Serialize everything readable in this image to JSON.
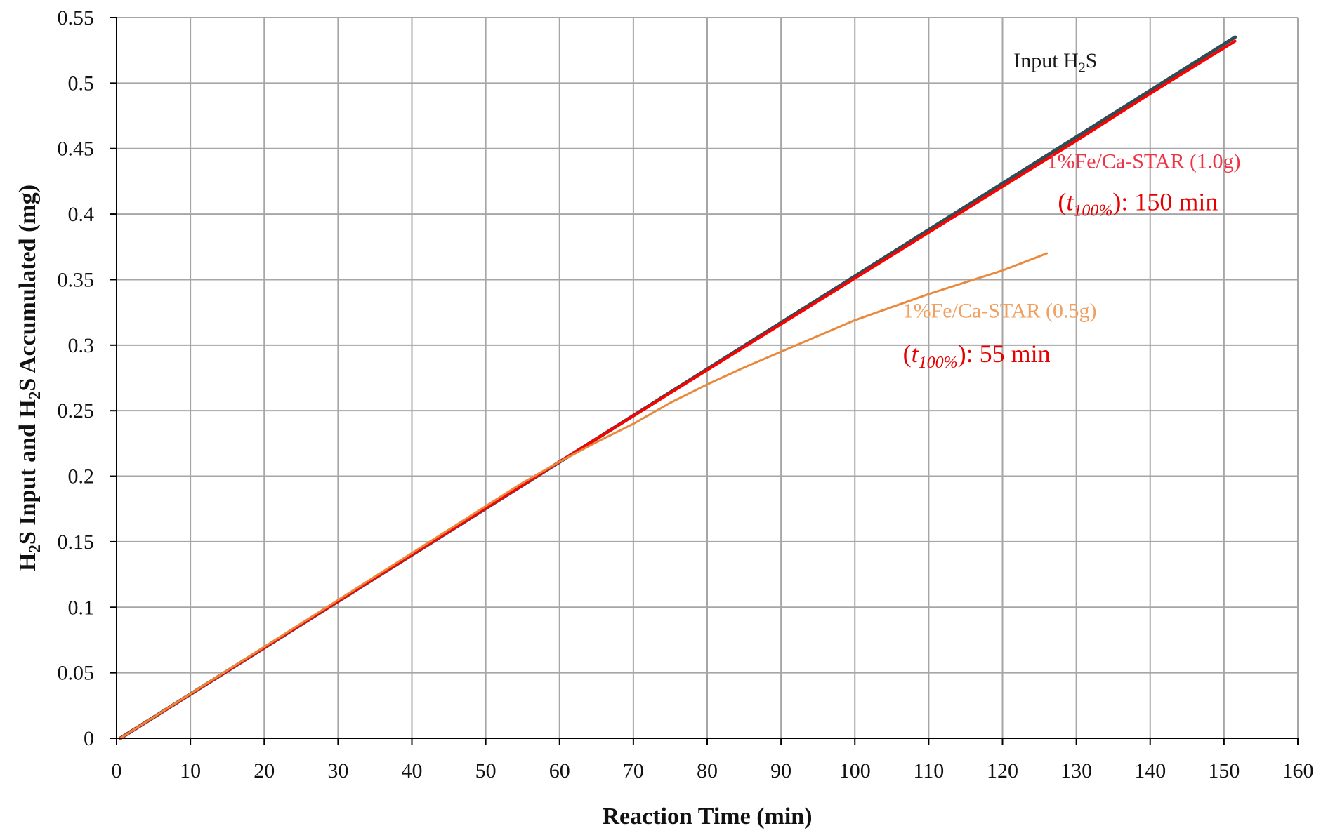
{
  "chart_data": {
    "type": "line",
    "title": "",
    "xlabel": "Reaction Time (min)",
    "ylabel": {
      "parts": [
        {
          "text": "H",
          "sub": false
        },
        {
          "text": "2",
          "sub": true
        },
        {
          "text": "S Input and ",
          "sub": false
        },
        {
          "text": "H",
          "sub": false
        },
        {
          "text": "2",
          "sub": true
        },
        {
          "text": "S Accumulated (mg)",
          "sub": false
        }
      ]
    },
    "xlim": [
      0,
      160
    ],
    "ylim": [
      0,
      0.55
    ],
    "x_ticks": [
      0,
      10,
      20,
      30,
      40,
      50,
      60,
      70,
      80,
      90,
      100,
      110,
      120,
      130,
      140,
      150,
      160
    ],
    "y_ticks": [
      0,
      0.05,
      0.1,
      0.15,
      0.2,
      0.25,
      0.3,
      0.35,
      0.4,
      0.45,
      0.5,
      0.55
    ],
    "x_tick_labels": [
      "0",
      "10",
      "20",
      "30",
      "40",
      "50",
      "60",
      "70",
      "80",
      "90",
      "100",
      "110",
      "120",
      "130",
      "140",
      "150",
      "160"
    ],
    "y_tick_labels": [
      "0",
      "0.05",
      "0.1",
      "0.15",
      "0.2",
      "0.25",
      "0.3",
      "0.35",
      "0.4",
      "0.45",
      "0.5",
      "0.55"
    ],
    "grid": true,
    "colors": {
      "grid": "#a6a6a6",
      "axis": "#000000"
    },
    "series": [
      {
        "color": "#2e4d55",
        "stroke_px": 5,
        "points": [
          [
            0.5,
            0.0
          ],
          [
            151.5,
            0.535
          ]
        ]
      },
      {
        "color": "#ff0000",
        "stroke_px": 4,
        "points": [
          [
            0.5,
            0.0
          ],
          [
            60,
            0.211
          ],
          [
            70,
            0.246
          ],
          [
            80,
            0.281
          ],
          [
            90,
            0.316
          ],
          [
            100,
            0.351
          ],
          [
            110,
            0.386
          ],
          [
            120,
            0.421
          ],
          [
            130,
            0.456
          ],
          [
            140,
            0.492
          ],
          [
            151.5,
            0.532
          ]
        ]
      },
      {
        "color": "#e8893e",
        "stroke_px": 3,
        "points": [
          [
            0.5,
            0.0
          ],
          [
            55,
            0.195
          ],
          [
            60,
            0.211
          ],
          [
            65,
            0.226
          ],
          [
            70,
            0.24
          ],
          [
            75,
            0.256
          ],
          [
            80,
            0.27
          ],
          [
            85,
            0.283
          ],
          [
            90,
            0.295
          ],
          [
            95,
            0.307
          ],
          [
            100,
            0.319
          ],
          [
            105,
            0.329
          ],
          [
            110,
            0.339
          ],
          [
            115,
            0.348
          ],
          [
            120,
            0.357
          ],
          [
            126,
            0.37
          ]
        ]
      }
    ],
    "annotations": [
      {
        "x": 121.5,
        "y": 0.512,
        "color": "#1a1a1a",
        "size": 30,
        "anchor": "start",
        "parts": [
          {
            "text": "Input H",
            "italic": false,
            "sub": false
          },
          {
            "text": "2",
            "italic": false,
            "sub": true
          },
          {
            "text": "S",
            "italic": false,
            "sub": false
          }
        ]
      },
      {
        "x": 126,
        "y": 0.435,
        "color": "#ee3344",
        "size": 30,
        "anchor": "start",
        "parts": [
          {
            "text": "1%Fe/Ca-STAR (1.0g)",
            "italic": false,
            "sub": false
          }
        ]
      },
      {
        "x": 127.5,
        "y": 0.403,
        "color": "#e60000",
        "size": 36,
        "anchor": "start",
        "parts": [
          {
            "text": "(",
            "italic": false,
            "sub": false
          },
          {
            "text": "t",
            "italic": true,
            "sub": false
          },
          {
            "text": "100%",
            "italic": true,
            "sub": true
          },
          {
            "text": "): 150 min",
            "italic": false,
            "sub": false
          }
        ]
      },
      {
        "x": 106.5,
        "y": 0.321,
        "color": "#f0a060",
        "size": 30,
        "anchor": "start",
        "parts": [
          {
            "text": "1%Fe/Ca-STAR (0.5g)",
            "italic": false,
            "sub": false
          }
        ]
      },
      {
        "x": 106.5,
        "y": 0.287,
        "color": "#e60000",
        "size": 36,
        "anchor": "start",
        "parts": [
          {
            "text": "(",
            "italic": false,
            "sub": false
          },
          {
            "text": "t",
            "italic": true,
            "sub": false
          },
          {
            "text": "100%",
            "italic": true,
            "sub": true
          },
          {
            "text": "): 55 min",
            "italic": false,
            "sub": false
          }
        ]
      }
    ]
  }
}
